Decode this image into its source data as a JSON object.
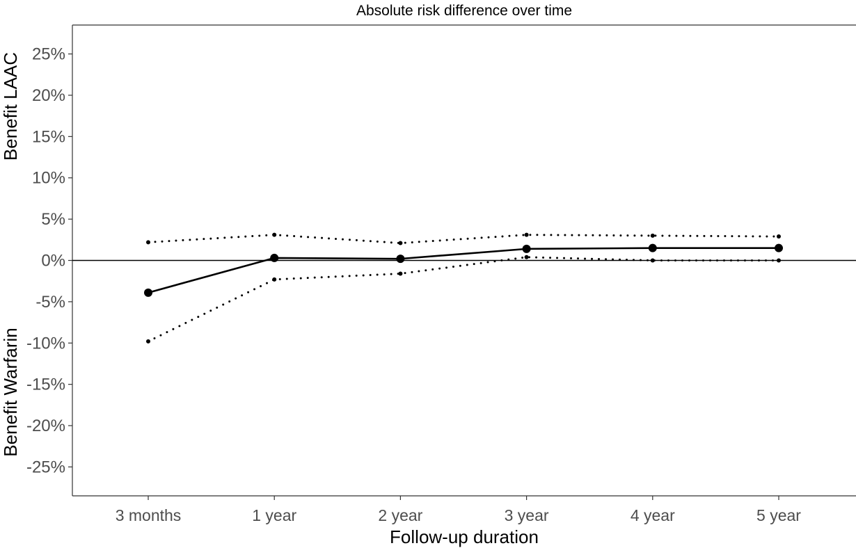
{
  "chart_data": {
    "type": "line",
    "title": "Absolute risk difference over time",
    "xlabel": "Follow-up duration",
    "ylabel_top": "Benefit LAAC",
    "ylabel_bottom": "Benefit Warfarin",
    "categories": [
      "3 months",
      "1 year",
      "2 year",
      "3 year",
      "4 year",
      "5 year"
    ],
    "ylim": [
      -28.5,
      28.5
    ],
    "yticks": [
      25,
      20,
      15,
      10,
      5,
      0,
      -5,
      -10,
      -15,
      -20,
      -25
    ],
    "ytick_labels": [
      "25%",
      "20%",
      "15%",
      "10%",
      "5%",
      "0%",
      "-5%",
      "-10%",
      "-15%",
      "-20%",
      "-25%"
    ],
    "reference_line": 0,
    "grid": false,
    "series": [
      {
        "role": "estimate",
        "style": "solid",
        "values": [
          -3.9,
          0.3,
          0.2,
          1.4,
          1.5,
          1.5
        ]
      },
      {
        "role": "upper",
        "style": "dotted",
        "values": [
          2.2,
          3.1,
          2.1,
          3.1,
          3.0,
          2.9
        ]
      },
      {
        "role": "lower",
        "style": "dotted",
        "values": [
          -9.8,
          -2.3,
          -1.6,
          0.4,
          0.0,
          0.0
        ]
      }
    ],
    "colors": {
      "line": "#000000",
      "axis": "#333333",
      "tick_text": "#4d4d4d"
    }
  }
}
